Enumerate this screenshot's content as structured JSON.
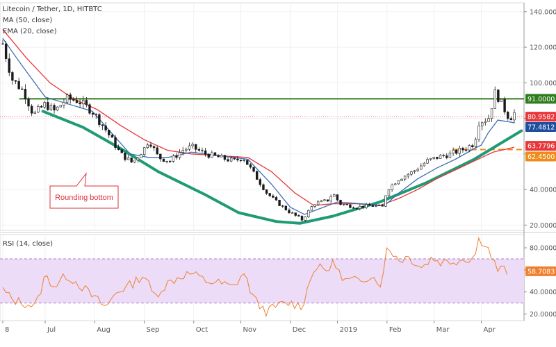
{
  "header": {
    "symbol": "Litecoin / Tether, 1D, HITBTC",
    "ma_label": "MA (50, close)",
    "ema_label": "EMA (20, close)",
    "rsi_label": "RSI (14, close)"
  },
  "colors": {
    "up": "#1b1b1b",
    "down": "#1b1b1b",
    "ma": "#3a6fb5",
    "ema": "#e8363a",
    "resistance": "#2f7d1d",
    "support_dash": "#f08a18",
    "curve": "#1f9b73",
    "rsi": "#f08030",
    "rsi_band": "#ecdcf7",
    "rsi_band_line": "#b07cc8",
    "axis_text": "#555555",
    "grid": "#f0f0f0",
    "annotation": "#e0303a"
  },
  "annotation": {
    "text": "Rounding bottom"
  },
  "chart_data": [
    {
      "type": "candlestick",
      "title": "Litecoin / Tether, 1D, HITBTC",
      "x_labels": [
        "8",
        "Jul",
        "Aug",
        "Sep",
        "Oct",
        "Nov",
        "Dec",
        "2019",
        "Feb",
        "Mar",
        "Apr"
      ],
      "x_months": [
        0,
        0.9,
        1.95,
        3.0,
        4.05,
        5.05,
        6.1,
        7.1,
        8.15,
        9.15,
        10.15
      ],
      "y_ticks": [
        20,
        40,
        60,
        80,
        100,
        120,
        140
      ],
      "y_tick_labels": [
        "20.0000",
        "40.0000",
        "60.0000",
        "80.0000",
        "100.0000",
        "120.0000",
        "140.0000"
      ],
      "ylim": [
        17,
        145
      ],
      "price_path": [
        [
          0,
          122
        ],
        [
          0.2,
          102
        ],
        [
          0.45,
          95
        ],
        [
          0.65,
          82
        ],
        [
          0.9,
          88
        ],
        [
          1.1,
          84
        ],
        [
          1.35,
          91
        ],
        [
          1.6,
          90
        ],
        [
          1.9,
          84
        ],
        [
          2.2,
          73
        ],
        [
          2.5,
          60
        ],
        [
          2.75,
          55
        ],
        [
          3.0,
          63
        ],
        [
          3.1,
          68
        ],
        [
          3.3,
          58
        ],
        [
          3.55,
          56
        ],
        [
          3.8,
          62
        ],
        [
          4.0,
          64
        ],
        [
          4.3,
          60
        ],
        [
          4.6,
          58
        ],
        [
          4.9,
          56
        ],
        [
          5.1,
          58
        ],
        [
          5.35,
          48
        ],
        [
          5.6,
          38
        ],
        [
          5.85,
          32
        ],
        [
          6.1,
          27
        ],
        [
          6.35,
          23
        ],
        [
          6.6,
          32
        ],
        [
          6.9,
          34
        ],
        [
          7.0,
          38
        ],
        [
          7.15,
          32
        ],
        [
          7.5,
          30
        ],
        [
          7.8,
          31
        ],
        [
          8.05,
          30
        ],
        [
          8.15,
          40
        ],
        [
          8.4,
          46
        ],
        [
          8.7,
          50
        ],
        [
          9.0,
          56
        ],
        [
          9.2,
          58
        ],
        [
          9.5,
          60
        ],
        [
          9.8,
          63
        ],
        [
          10.0,
          66
        ],
        [
          10.1,
          78
        ],
        [
          10.3,
          80
        ],
        [
          10.45,
          95
        ],
        [
          10.6,
          87
        ],
        [
          10.75,
          80
        ],
        [
          10.85,
          83
        ]
      ],
      "ma_path": [
        [
          0,
          125
        ],
        [
          0.4,
          110
        ],
        [
          0.9,
          92
        ],
        [
          1.4,
          88
        ],
        [
          1.9,
          84
        ],
        [
          2.3,
          72
        ],
        [
          2.7,
          60
        ],
        [
          3.1,
          58
        ],
        [
          3.5,
          58
        ],
        [
          4.0,
          61
        ],
        [
          4.6,
          59
        ],
        [
          5.2,
          57
        ],
        [
          5.7,
          43
        ],
        [
          6.1,
          30
        ],
        [
          6.4,
          26
        ],
        [
          6.7,
          29
        ],
        [
          7.1,
          33
        ],
        [
          7.6,
          32
        ],
        [
          8.1,
          31
        ],
        [
          8.4,
          38
        ],
        [
          8.8,
          46
        ],
        [
          9.2,
          52
        ],
        [
          9.6,
          57
        ],
        [
          10.0,
          63
        ],
        [
          10.15,
          65
        ],
        [
          10.3,
          72
        ],
        [
          10.5,
          79
        ],
        [
          10.75,
          78
        ],
        [
          10.85,
          77.48
        ]
      ],
      "ema_path": [
        [
          0,
          130
        ],
        [
          0.5,
          114
        ],
        [
          1.0,
          100
        ],
        [
          1.5,
          91
        ],
        [
          2.0,
          85
        ],
        [
          2.5,
          76
        ],
        [
          3.0,
          68
        ],
        [
          3.5,
          62
        ],
        [
          4.0,
          60
        ],
        [
          4.6,
          59
        ],
        [
          5.2,
          58
        ],
        [
          5.7,
          50
        ],
        [
          6.2,
          38
        ],
        [
          6.6,
          31
        ],
        [
          7.0,
          32
        ],
        [
          7.5,
          32
        ],
        [
          8.0,
          31
        ],
        [
          8.4,
          35
        ],
        [
          8.8,
          40
        ],
        [
          9.2,
          46
        ],
        [
          9.6,
          51
        ],
        [
          10.0,
          56
        ],
        [
          10.4,
          61
        ],
        [
          10.85,
          63.78
        ]
      ],
      "rounding_curve": [
        [
          0.85,
          84
        ],
        [
          1.7,
          75
        ],
        [
          2.5,
          63
        ],
        [
          3.3,
          50
        ],
        [
          4.3,
          37
        ],
        [
          5.0,
          27
        ],
        [
          5.8,
          22
        ],
        [
          6.3,
          21
        ],
        [
          7.0,
          25
        ],
        [
          8.0,
          33
        ],
        [
          9.0,
          44
        ],
        [
          10.0,
          57
        ],
        [
          11.0,
          73
        ]
      ],
      "resistance": 91,
      "support": 62.45,
      "price_labels": [
        {
          "value": 91,
          "text": "91.0000",
          "color": "#2f7d1d"
        },
        {
          "value": 80.9582,
          "text": "80.9582",
          "color": "#e8363a"
        },
        {
          "value": 77.4812,
          "text": "77.4812",
          "color": "#1f4e9e"
        },
        {
          "value": 63.7796,
          "text": "63.7796",
          "color": "#e8363a"
        },
        {
          "value": 62.45,
          "text": "62.4500",
          "color": "#f08a18"
        }
      ]
    },
    {
      "type": "line",
      "title": "RSI (14, close)",
      "ylim": [
        14,
        92
      ],
      "y_ticks": [
        20,
        40,
        60,
        80
      ],
      "y_tick_labels": [
        "20.0000",
        "40.0000",
        "60.0000",
        "80.0000"
      ],
      "band": [
        30,
        70
      ],
      "rsi_path": [
        [
          0,
          42
        ],
        [
          0.2,
          33
        ],
        [
          0.45,
          30
        ],
        [
          0.7,
          27
        ],
        [
          0.9,
          55
        ],
        [
          1.1,
          45
        ],
        [
          1.35,
          55
        ],
        [
          1.6,
          48
        ],
        [
          1.9,
          36
        ],
        [
          2.2,
          26
        ],
        [
          2.4,
          40
        ],
        [
          2.7,
          46
        ],
        [
          3.0,
          56
        ],
        [
          3.2,
          36
        ],
        [
          3.5,
          48
        ],
        [
          3.8,
          55
        ],
        [
          4.0,
          57
        ],
        [
          4.3,
          50
        ],
        [
          4.6,
          48
        ],
        [
          4.9,
          44
        ],
        [
          5.1,
          58
        ],
        [
          5.35,
          32
        ],
        [
          5.6,
          22
        ],
        [
          5.85,
          28
        ],
        [
          6.1,
          30
        ],
        [
          6.35,
          27
        ],
        [
          6.6,
          62
        ],
        [
          6.9,
          60
        ],
        [
          7.05,
          68
        ],
        [
          7.2,
          50
        ],
        [
          7.5,
          50
        ],
        [
          7.8,
          55
        ],
        [
          8.05,
          47
        ],
        [
          8.15,
          82
        ],
        [
          8.4,
          69
        ],
        [
          8.6,
          72
        ],
        [
          8.9,
          62
        ],
        [
          9.1,
          71
        ],
        [
          9.3,
          67
        ],
        [
          9.55,
          68
        ],
        [
          9.8,
          70
        ],
        [
          10.0,
          71
        ],
        [
          10.1,
          88
        ],
        [
          10.25,
          84
        ],
        [
          10.4,
          68
        ],
        [
          10.5,
          60
        ],
        [
          10.6,
          61
        ],
        [
          10.7,
          58.71
        ]
      ],
      "last_value": 58.7083,
      "last_label": "58.7083"
    }
  ]
}
